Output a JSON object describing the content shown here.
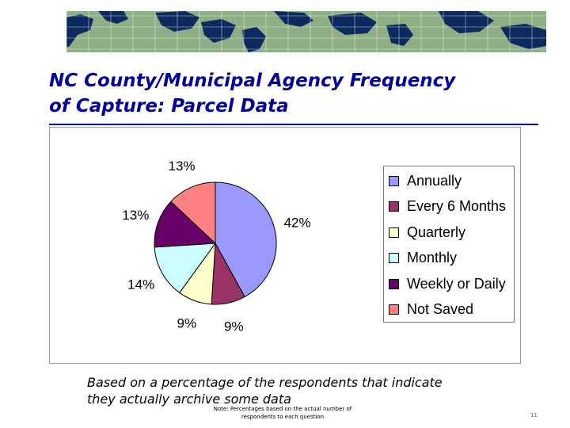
{
  "slide": {
    "title": "NC County/Municipal Agency Frequency\nof Capture: Parcel Data",
    "note": "Based on a percentage of the respondents that indicate\nthey actually archive some data",
    "footnote": "Note: Percentages based on the actual number of\nrespondents to each question",
    "page_number": "11",
    "banner": {
      "ocean_color": "#8fae86",
      "land_color": "#0d2a5e",
      "grid_color": "#ffffff"
    },
    "title_color": "#000099"
  },
  "chart_data": {
    "type": "pie",
    "title": "",
    "legend_position": "right",
    "categories": [
      "Annually",
      "Every 6 Months",
      "Quarterly",
      "Monthly",
      "Weekly or Daily",
      "Not Saved"
    ],
    "values": [
      42,
      9,
      9,
      14,
      13,
      13
    ],
    "labels": [
      "42%",
      "9%",
      "9%",
      "14%",
      "13%",
      "13%"
    ],
    "colors": [
      "#9999ff",
      "#993366",
      "#ffffcc",
      "#ccffff",
      "#660066",
      "#ff8080"
    ]
  }
}
